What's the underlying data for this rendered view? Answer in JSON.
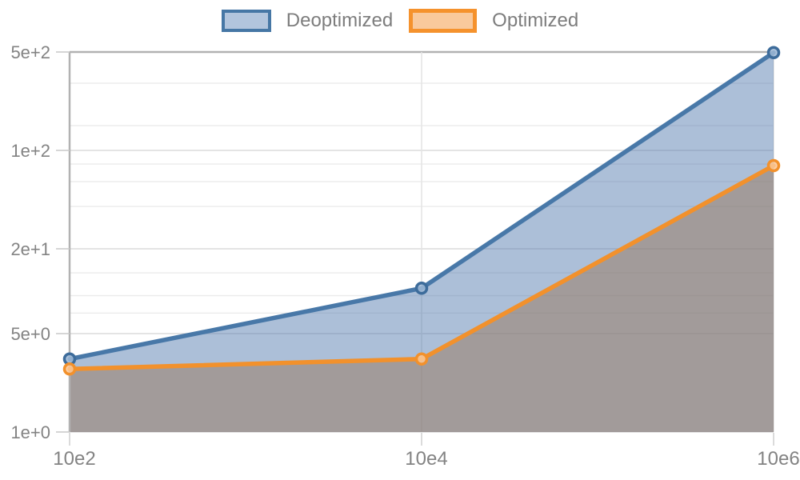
{
  "page": {
    "background": "#ffffff"
  },
  "legend": {
    "position": "top-center",
    "items": [
      {
        "label": "Deoptimized",
        "swatch_fill": "#b2c5dd",
        "swatch_border": "#4677a5"
      },
      {
        "label": "Optimized",
        "swatch_fill": "#f9c99c",
        "swatch_border": "#f5922d"
      }
    ]
  },
  "chart_data": {
    "type": "area",
    "title": "",
    "xlabel": "",
    "ylabel": "",
    "x_scale": "log",
    "y_scale": "log",
    "categories": [
      "10e2",
      "10e4",
      "10e6"
    ],
    "series": [
      {
        "name": "Deoptimized",
        "values": [
          3.3,
          10.5,
          495
        ],
        "line_color": "#4878a8",
        "marker_stroke": "#3d6c9b",
        "marker_fill": "#9fb9d6",
        "area_fill": "rgba(70,114,168,0.45)",
        "area_color_observed": "#a6bcd6"
      },
      {
        "name": "Optimized",
        "values": [
          2.8,
          3.3,
          78
        ],
        "line_color": "#f2912c",
        "marker_stroke": "#f2912c",
        "marker_fill": "#fac796",
        "area_fill": "rgba(155,130,109,0.58)",
        "area_color_observed": "#a39e9d"
      }
    ],
    "y_axis": {
      "min": 1,
      "max": 500,
      "ticks": [
        {
          "label": "5e+2",
          "value": 500
        },
        {
          "label": "1e+2",
          "value": 100
        },
        {
          "label": "2e+1",
          "value": 20
        },
        {
          "label": "5e+0",
          "value": 5
        },
        {
          "label": "1e+0",
          "value": 1
        }
      ],
      "minor_gridlines": [
        300,
        150,
        80,
        60,
        40,
        13.5,
        9.3,
        7
      ]
    },
    "x_axis": {
      "ticks": [
        "10e2",
        "10e4",
        "10e6"
      ]
    },
    "legend_position": "top",
    "grid": true
  }
}
